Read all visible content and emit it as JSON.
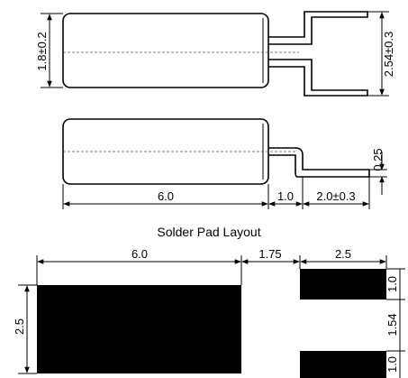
{
  "top_view": {
    "body_diameter": "1.8±0.2",
    "lead_spacing": "2.54±0.3"
  },
  "side_view": {
    "body_length": "6.0",
    "lead_gap": "1.0",
    "lead_length": "2.0±0.3",
    "lead_thickness": "0.25"
  },
  "pad_layout": {
    "title": "Solder Pad Layout",
    "large_pad_width": "6.0",
    "pad_gap": "1.75",
    "small_pad_width": "2.5",
    "large_pad_height": "2.5",
    "small_pad_height_top": "1.0",
    "small_pad_spacing": "1.54",
    "small_pad_height_bottom": "1.0"
  }
}
